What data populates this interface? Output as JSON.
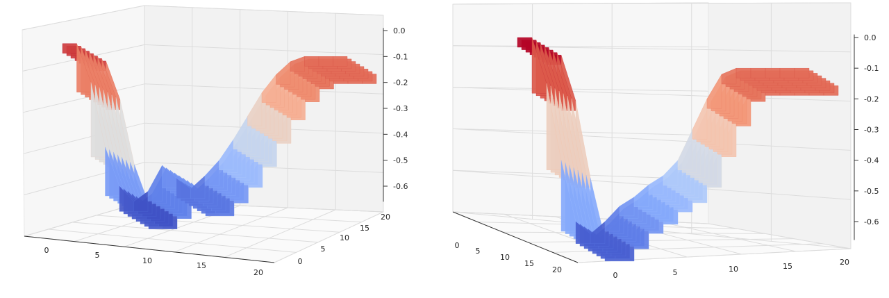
{
  "chart_data": [
    {
      "type": "surface3d",
      "title": "",
      "xlabel": "",
      "ylabel": "",
      "zlabel": "",
      "x_ticks": [
        0,
        5,
        10,
        15,
        20
      ],
      "y_ticks": [
        0,
        5,
        10,
        15,
        20
      ],
      "z_ticks": [
        0.0,
        -0.1,
        -0.2,
        -0.3,
        -0.4,
        -0.5,
        -0.6
      ],
      "x_tick_labels": [
        "0",
        "5",
        "10",
        "15",
        "20"
      ],
      "y_tick_labels": [
        "0",
        "5",
        "10",
        "15",
        "20"
      ],
      "z_tick_labels": [
        "0.0",
        "-0.1",
        "-0.2",
        "-0.3",
        "-0.4",
        "-0.5",
        "-0.6"
      ],
      "xlim": [
        0,
        20
      ],
      "ylim": [
        0,
        20
      ],
      "zlim": [
        -0.65,
        0.0
      ],
      "colormap": "coolwarm",
      "grid": true,
      "view": "front-left elevated",
      "surface_profile": {
        "x": [
          0,
          1,
          2,
          3,
          4,
          5,
          6,
          7,
          8,
          9,
          10,
          11,
          12,
          13,
          14,
          15,
          16,
          17,
          18,
          19,
          20
        ],
        "z": [
          -0.05,
          -0.05,
          -0.2,
          -0.45,
          -0.6,
          -0.66,
          -0.62,
          -0.52,
          -0.57,
          -0.61,
          -0.56,
          -0.5,
          -0.42,
          -0.33,
          -0.24,
          -0.17,
          -0.12,
          -0.1,
          -0.1,
          -0.1,
          -0.1
        ]
      }
    },
    {
      "type": "surface3d",
      "title": "",
      "xlabel": "",
      "ylabel": "",
      "zlabel": "",
      "x_ticks": [
        0,
        5,
        10,
        15,
        20
      ],
      "y_ticks": [
        0,
        5,
        10,
        15,
        20
      ],
      "z_ticks": [
        0.0,
        -0.1,
        -0.2,
        -0.3,
        -0.4,
        -0.5,
        -0.6
      ],
      "x_tick_labels": [
        "0",
        "5",
        "10",
        "15",
        "20"
      ],
      "y_tick_labels": [
        "0",
        "5",
        "10",
        "15",
        "20"
      ],
      "z_tick_labels": [
        "0.0",
        "-0.1",
        "-0.2",
        "-0.3",
        "-0.4",
        "-0.5",
        "-0.6"
      ],
      "xlim": [
        0,
        20
      ],
      "ylim": [
        0,
        20
      ],
      "zlim": [
        -0.65,
        0.0
      ],
      "colormap": "coolwarm",
      "grid": true,
      "view": "front-right elevated",
      "surface_profile": {
        "x": [
          0,
          1,
          2,
          3,
          4,
          5,
          6,
          7,
          8,
          9,
          10,
          11,
          12,
          13,
          14,
          15,
          16,
          17,
          18,
          19,
          20
        ],
        "z": [
          0.0,
          0.0,
          -0.15,
          -0.4,
          -0.6,
          -0.64,
          -0.6,
          -0.55,
          -0.52,
          -0.48,
          -0.45,
          -0.4,
          -0.3,
          -0.2,
          -0.12,
          -0.1,
          -0.1,
          -0.1,
          -0.1,
          -0.1,
          -0.1
        ]
      }
    }
  ]
}
